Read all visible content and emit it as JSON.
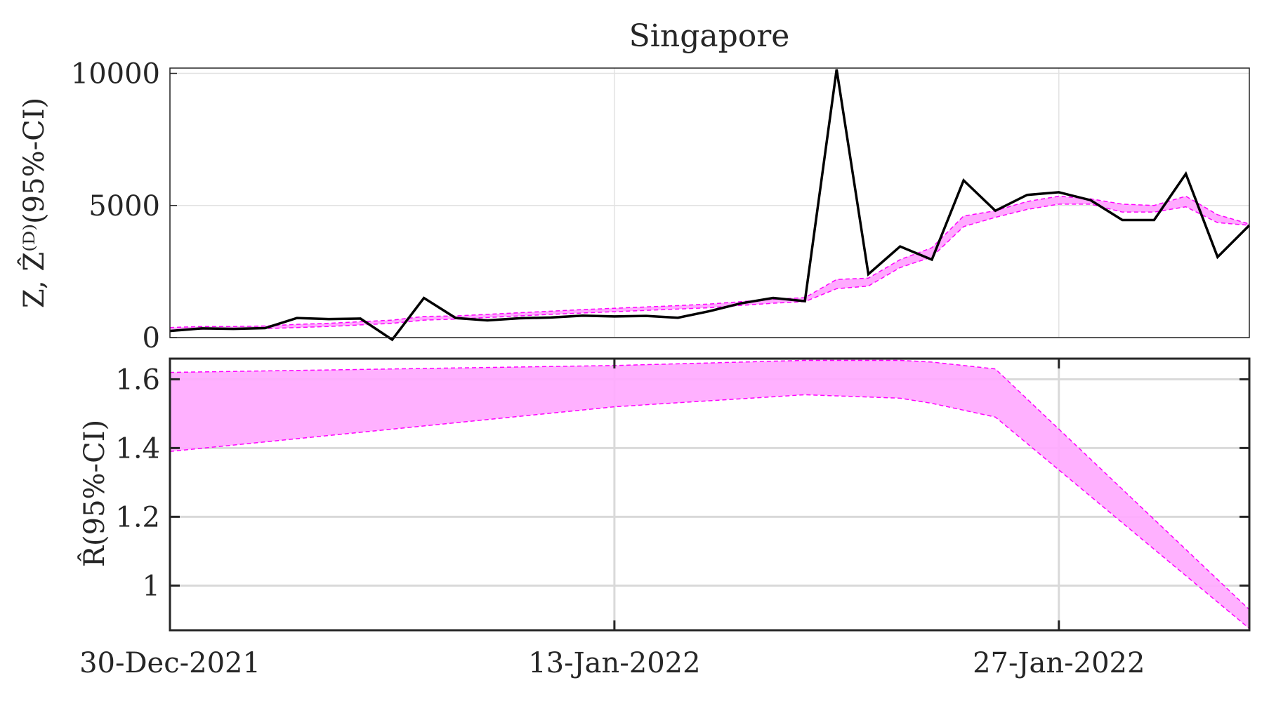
{
  "chart_data": [
    {
      "type": "line",
      "title": "Singapore",
      "ylabel": "Z, Ẑ⁽ᴰ⁾(95%-CI)",
      "xlabel": "",
      "x_start": "2021-12-30",
      "x_end": "2022-02-02",
      "ylim": [
        0,
        10200
      ],
      "yticks": [
        0,
        5000,
        10000
      ],
      "ytick_labels": [
        "0",
        "5000",
        "10000"
      ],
      "grid": true,
      "series": [
        {
          "kind": "observed",
          "color": "#000000",
          "values": [
            250,
            350,
            330,
            360,
            740,
            700,
            720,
            -80,
            1500,
            740,
            650,
            730,
            760,
            830,
            800,
            820,
            750,
            1000,
            1300,
            1500,
            1380,
            10150,
            2400,
            3450,
            2950,
            5950,
            4800,
            5400,
            5500,
            5200,
            4450,
            4450,
            6200,
            3050,
            4250
          ]
        },
        {
          "kind": "band",
          "color": "#ff00ff",
          "lower": [
            250,
            320,
            330,
            340,
            380,
            420,
            480,
            540,
            660,
            700,
            760,
            820,
            880,
            930,
            980,
            1030,
            1080,
            1130,
            1220,
            1300,
            1360,
            1850,
            1950,
            2650,
            3050,
            4200,
            4550,
            4850,
            5050,
            5050,
            4750,
            4750,
            4950,
            4350,
            4250
          ],
          "upper": [
            380,
            420,
            420,
            440,
            500,
            540,
            600,
            660,
            800,
            820,
            880,
            940,
            1000,
            1060,
            1110,
            1160,
            1210,
            1270,
            1360,
            1450,
            1510,
            2200,
            2250,
            2950,
            3400,
            4600,
            4800,
            5150,
            5350,
            5250,
            5050,
            5000,
            5350,
            4650,
            4300
          ]
        }
      ]
    },
    {
      "type": "area",
      "title": "",
      "ylabel": "R̂(95%-CI)",
      "xlabel": "",
      "x_start": "2021-12-30",
      "x_end": "2022-02-02",
      "ylim": [
        0.87,
        1.66
      ],
      "yticks": [
        1,
        1.2,
        1.4,
        1.6
      ],
      "ytick_labels": [
        "1",
        "1.2",
        "1.4",
        "1.6"
      ],
      "grid": true,
      "series": [
        {
          "kind": "band",
          "color": "#ff00ff",
          "x_index": [
            0,
            14,
            20,
            23,
            24,
            26,
            34
          ],
          "lower": [
            1.39,
            1.52,
            1.555,
            1.545,
            1.53,
            1.49,
            0.875
          ],
          "upper": [
            1.62,
            1.64,
            1.655,
            1.655,
            1.65,
            1.63,
            0.93
          ]
        }
      ]
    }
  ],
  "xaxis": {
    "tick_dates": [
      "2021-12-30",
      "2022-01-13",
      "2022-01-27"
    ],
    "tick_labels": [
      "30-Dec-2021",
      "13-Jan-2022",
      "27-Jan-2022"
    ]
  },
  "colors": {
    "observed": "#000000",
    "band": "#ff00ff",
    "band_fill": "#ffaaff"
  }
}
